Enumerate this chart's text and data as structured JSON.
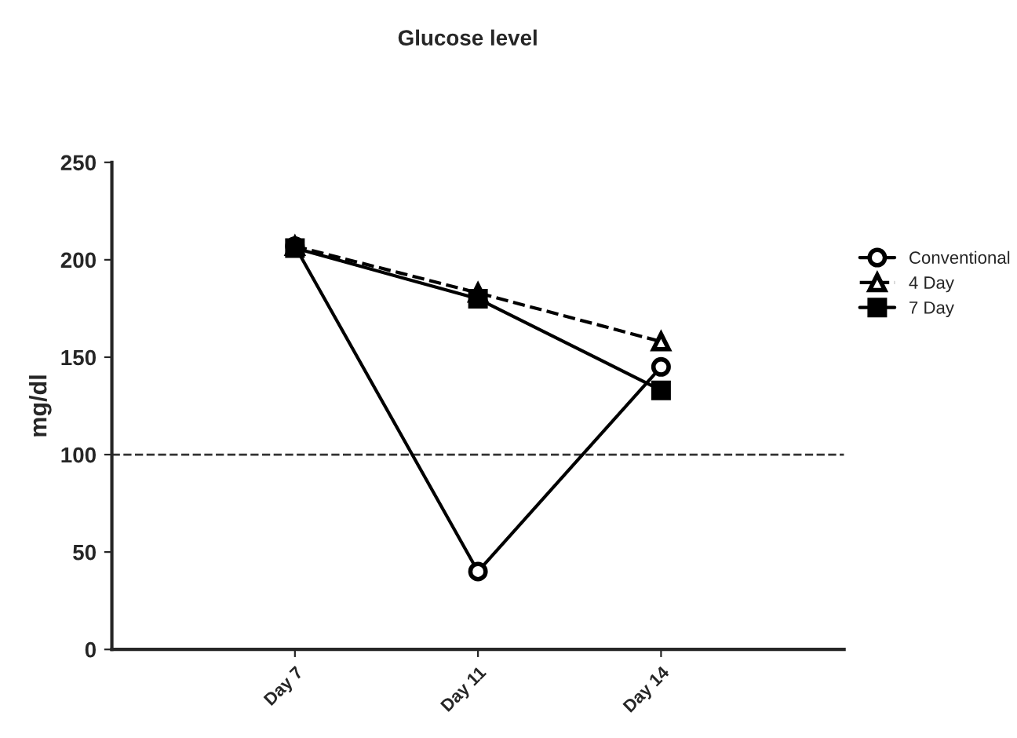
{
  "chart_data": {
    "type": "line",
    "title": "Glucose level",
    "ylabel": "mg/dl",
    "categories": [
      "Day 7",
      "Day 11",
      "Day 14"
    ],
    "series": [
      {
        "name": "Conventional",
        "color": "#000000",
        "values": [
          207,
          40,
          145
        ],
        "marker": "circle",
        "line_style": "solid"
      },
      {
        "name": "4 Day",
        "color": "#000000",
        "values": [
          207,
          183,
          158
        ],
        "marker": "triangle",
        "line_style": "dashed"
      },
      {
        "name": "7 Day",
        "color": "#000000",
        "values": [
          206,
          180,
          133
        ],
        "marker": "square",
        "line_style": "solid"
      }
    ],
    "ylim": [
      0,
      250
    ],
    "yticks": [
      0,
      50,
      100,
      150,
      200,
      250
    ],
    "ref_lines": [
      {
        "axis": "y",
        "value": 100,
        "color": "#333333",
        "line_style": "dashed"
      }
    ],
    "grid": false,
    "legend": "right"
  }
}
